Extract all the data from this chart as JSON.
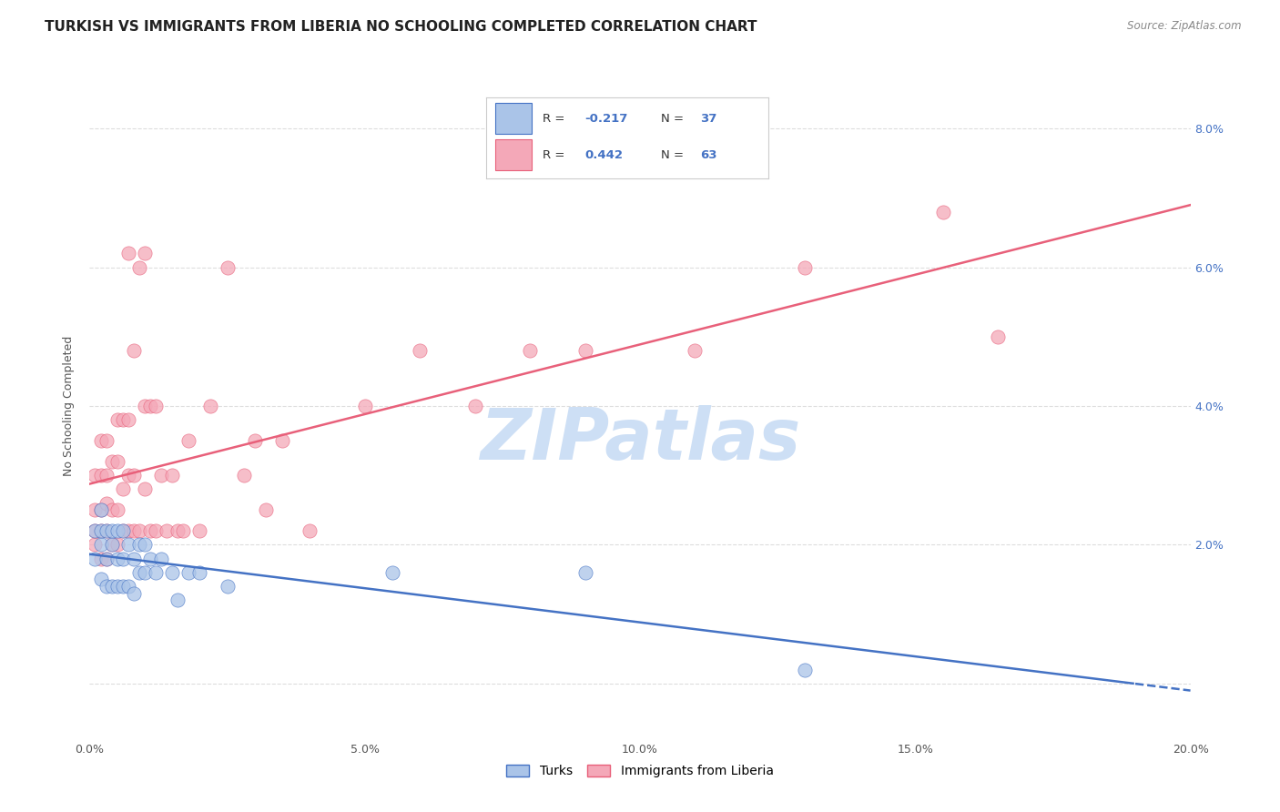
{
  "title": "TURKISH VS IMMIGRANTS FROM LIBERIA NO SCHOOLING COMPLETED CORRELATION CHART",
  "source": "Source: ZipAtlas.com",
  "ylabel": "No Schooling Completed",
  "xlim": [
    0.0,
    0.2
  ],
  "ylim": [
    -0.008,
    0.088
  ],
  "yticks": [
    0.0,
    0.02,
    0.04,
    0.06,
    0.08
  ],
  "ytick_labels_right": [
    "",
    "2.0%",
    "4.0%",
    "6.0%",
    "8.0%"
  ],
  "xticks": [
    0.0,
    0.05,
    0.1,
    0.15,
    0.2
  ],
  "xtick_labels": [
    "0.0%",
    "5.0%",
    "10.0%",
    "15.0%",
    "20.0%"
  ],
  "turks_color": "#aac4e8",
  "liberia_color": "#f4a8b8",
  "turks_line_color": "#4472c4",
  "liberia_line_color": "#e8607a",
  "legend_label_turks": "Turks",
  "legend_label_liberia": "Immigrants from Liberia",
  "watermark": "ZIPatlas",
  "watermark_color": "#cddff5",
  "title_fontsize": 11,
  "axis_fontsize": 9,
  "tick_fontsize": 9,
  "turks_x": [
    0.001,
    0.001,
    0.002,
    0.002,
    0.002,
    0.002,
    0.003,
    0.003,
    0.003,
    0.004,
    0.004,
    0.004,
    0.005,
    0.005,
    0.005,
    0.006,
    0.006,
    0.006,
    0.007,
    0.007,
    0.008,
    0.008,
    0.009,
    0.009,
    0.01,
    0.01,
    0.011,
    0.012,
    0.013,
    0.015,
    0.016,
    0.018,
    0.02,
    0.025,
    0.055,
    0.09,
    0.13
  ],
  "turks_y": [
    0.018,
    0.022,
    0.015,
    0.02,
    0.022,
    0.025,
    0.014,
    0.018,
    0.022,
    0.014,
    0.02,
    0.022,
    0.014,
    0.018,
    0.022,
    0.014,
    0.018,
    0.022,
    0.014,
    0.02,
    0.013,
    0.018,
    0.016,
    0.02,
    0.016,
    0.02,
    0.018,
    0.016,
    0.018,
    0.016,
    0.012,
    0.016,
    0.016,
    0.014,
    0.016,
    0.016,
    0.002
  ],
  "liberia_x": [
    0.001,
    0.001,
    0.001,
    0.001,
    0.002,
    0.002,
    0.002,
    0.002,
    0.002,
    0.003,
    0.003,
    0.003,
    0.003,
    0.003,
    0.004,
    0.004,
    0.004,
    0.005,
    0.005,
    0.005,
    0.005,
    0.006,
    0.006,
    0.006,
    0.007,
    0.007,
    0.007,
    0.007,
    0.008,
    0.008,
    0.008,
    0.009,
    0.009,
    0.01,
    0.01,
    0.01,
    0.011,
    0.011,
    0.012,
    0.012,
    0.013,
    0.014,
    0.015,
    0.016,
    0.017,
    0.018,
    0.02,
    0.022,
    0.025,
    0.028,
    0.03,
    0.032,
    0.035,
    0.04,
    0.05,
    0.06,
    0.07,
    0.08,
    0.09,
    0.11,
    0.13,
    0.155,
    0.165
  ],
  "liberia_y": [
    0.02,
    0.022,
    0.025,
    0.03,
    0.018,
    0.022,
    0.025,
    0.03,
    0.035,
    0.018,
    0.022,
    0.026,
    0.03,
    0.035,
    0.02,
    0.025,
    0.032,
    0.02,
    0.025,
    0.032,
    0.038,
    0.022,
    0.028,
    0.038,
    0.022,
    0.03,
    0.038,
    0.062,
    0.022,
    0.03,
    0.048,
    0.022,
    0.06,
    0.028,
    0.04,
    0.062,
    0.022,
    0.04,
    0.022,
    0.04,
    0.03,
    0.022,
    0.03,
    0.022,
    0.022,
    0.035,
    0.022,
    0.04,
    0.06,
    0.03,
    0.035,
    0.025,
    0.035,
    0.022,
    0.04,
    0.048,
    0.04,
    0.048,
    0.048,
    0.048,
    0.06,
    0.068,
    0.05
  ]
}
